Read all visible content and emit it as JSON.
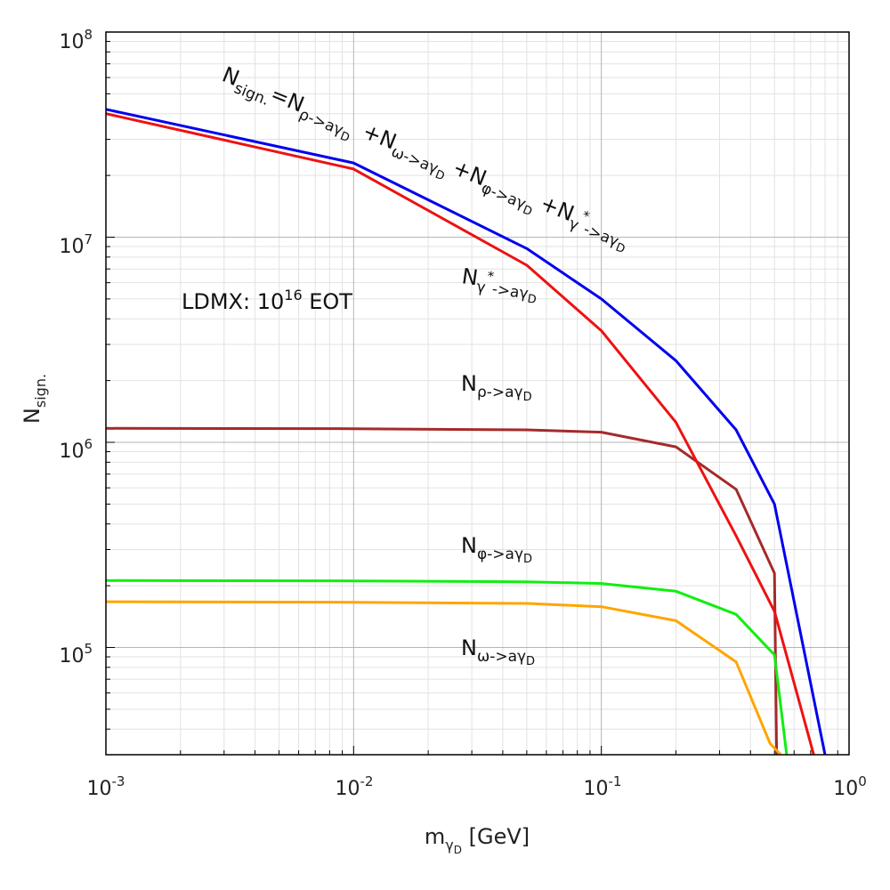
{
  "chart_data": {
    "type": "line",
    "title": "",
    "xscale": "log",
    "yscale": "log",
    "xlim": [
      0.001,
      1
    ],
    "ylim": [
      30000,
      100000000
    ],
    "grid": true,
    "xlabel": {
      "main": "m",
      "sub1": "γ",
      "sub2": "D",
      "unit": " [GeV]"
    },
    "ylabel": {
      "main": "N",
      "sub": "sign."
    },
    "x_ticks": [
      {
        "value": 0.001,
        "base": "10",
        "exp": "-3"
      },
      {
        "value": 0.01,
        "base": "10",
        "exp": "-2"
      },
      {
        "value": 0.1,
        "base": "10",
        "exp": "-1"
      },
      {
        "value": 1,
        "base": "10",
        "exp": "0"
      }
    ],
    "y_ticks": [
      {
        "value": 100000,
        "base": "10",
        "exp": "5"
      },
      {
        "value": 1000000,
        "base": "10",
        "exp": "6"
      },
      {
        "value": 10000000,
        "base": "10",
        "exp": "7"
      },
      {
        "value": 100000000,
        "base": "10",
        "exp": "8"
      }
    ],
    "series": [
      {
        "name": "total",
        "color": "#0000ee",
        "x": [
          0.001,
          0.01,
          0.05,
          0.1,
          0.2,
          0.35,
          0.5,
          0.8
        ],
        "y": [
          42000000,
          23000000,
          8800000,
          5000000,
          2500000,
          1150000,
          500000,
          30000
        ]
      },
      {
        "name": "gamma_star",
        "color": "#ee1111",
        "x": [
          0.001,
          0.01,
          0.05,
          0.1,
          0.2,
          0.35,
          0.5,
          0.72
        ],
        "y": [
          40000000,
          21500000,
          7300000,
          3500000,
          1250000,
          350000,
          150000,
          30000
        ]
      },
      {
        "name": "rho",
        "color": "#a52a2a",
        "x": [
          0.001,
          0.01,
          0.05,
          0.1,
          0.2,
          0.35,
          0.5,
          0.51
        ],
        "y": [
          1170000,
          1165000,
          1150000,
          1120000,
          950000,
          590000,
          230000,
          30000
        ]
      },
      {
        "name": "phi",
        "color": "#11ee11",
        "x": [
          0.001,
          0.01,
          0.05,
          0.1,
          0.2,
          0.35,
          0.5,
          0.56
        ],
        "y": [
          212000,
          211000,
          209000,
          205000,
          188000,
          145000,
          92000,
          30000
        ]
      },
      {
        "name": "omega",
        "color": "#ffa500",
        "x": [
          0.001,
          0.01,
          0.05,
          0.1,
          0.2,
          0.35,
          0.48,
          0.53
        ],
        "y": [
          167000,
          166000,
          164000,
          158000,
          135000,
          85000,
          34000,
          30000
        ]
      }
    ],
    "annotations": {
      "experiment": {
        "text": "LDMX: 10",
        "exp": "16",
        "suffix": " EOT"
      },
      "rho": {
        "main": "N",
        "sub": "ρ->aγ",
        "subsub": "D"
      },
      "phi": {
        "main": "N",
        "sub": "φ->aγ",
        "subsub": "D"
      },
      "omega": {
        "main": "N",
        "sub": "ω->aγ",
        "subsub": "D"
      },
      "gamma_star": {
        "main": "N",
        "sub1": "γ",
        "sup": "*",
        "sub2": "->aγ",
        "subsub": "D"
      },
      "total": {
        "lhs_main": "N",
        "lhs_sub": "sign.",
        "eq": "=",
        "t1_main": "N",
        "t1_sub": "ρ->aγ",
        "t1_subsub": "D",
        "t2_main": "+N",
        "t2_sub": "ω->aγ",
        "t2_subsub": "D",
        "t3_main": "+N",
        "t3_sub": "φ->aγ",
        "t3_subsub": "D",
        "t4_main": "+N",
        "t4_sub1": "γ",
        "t4_sup": "*",
        "t4_sub2": "->aγ",
        "t4_subsub": "D"
      }
    }
  }
}
